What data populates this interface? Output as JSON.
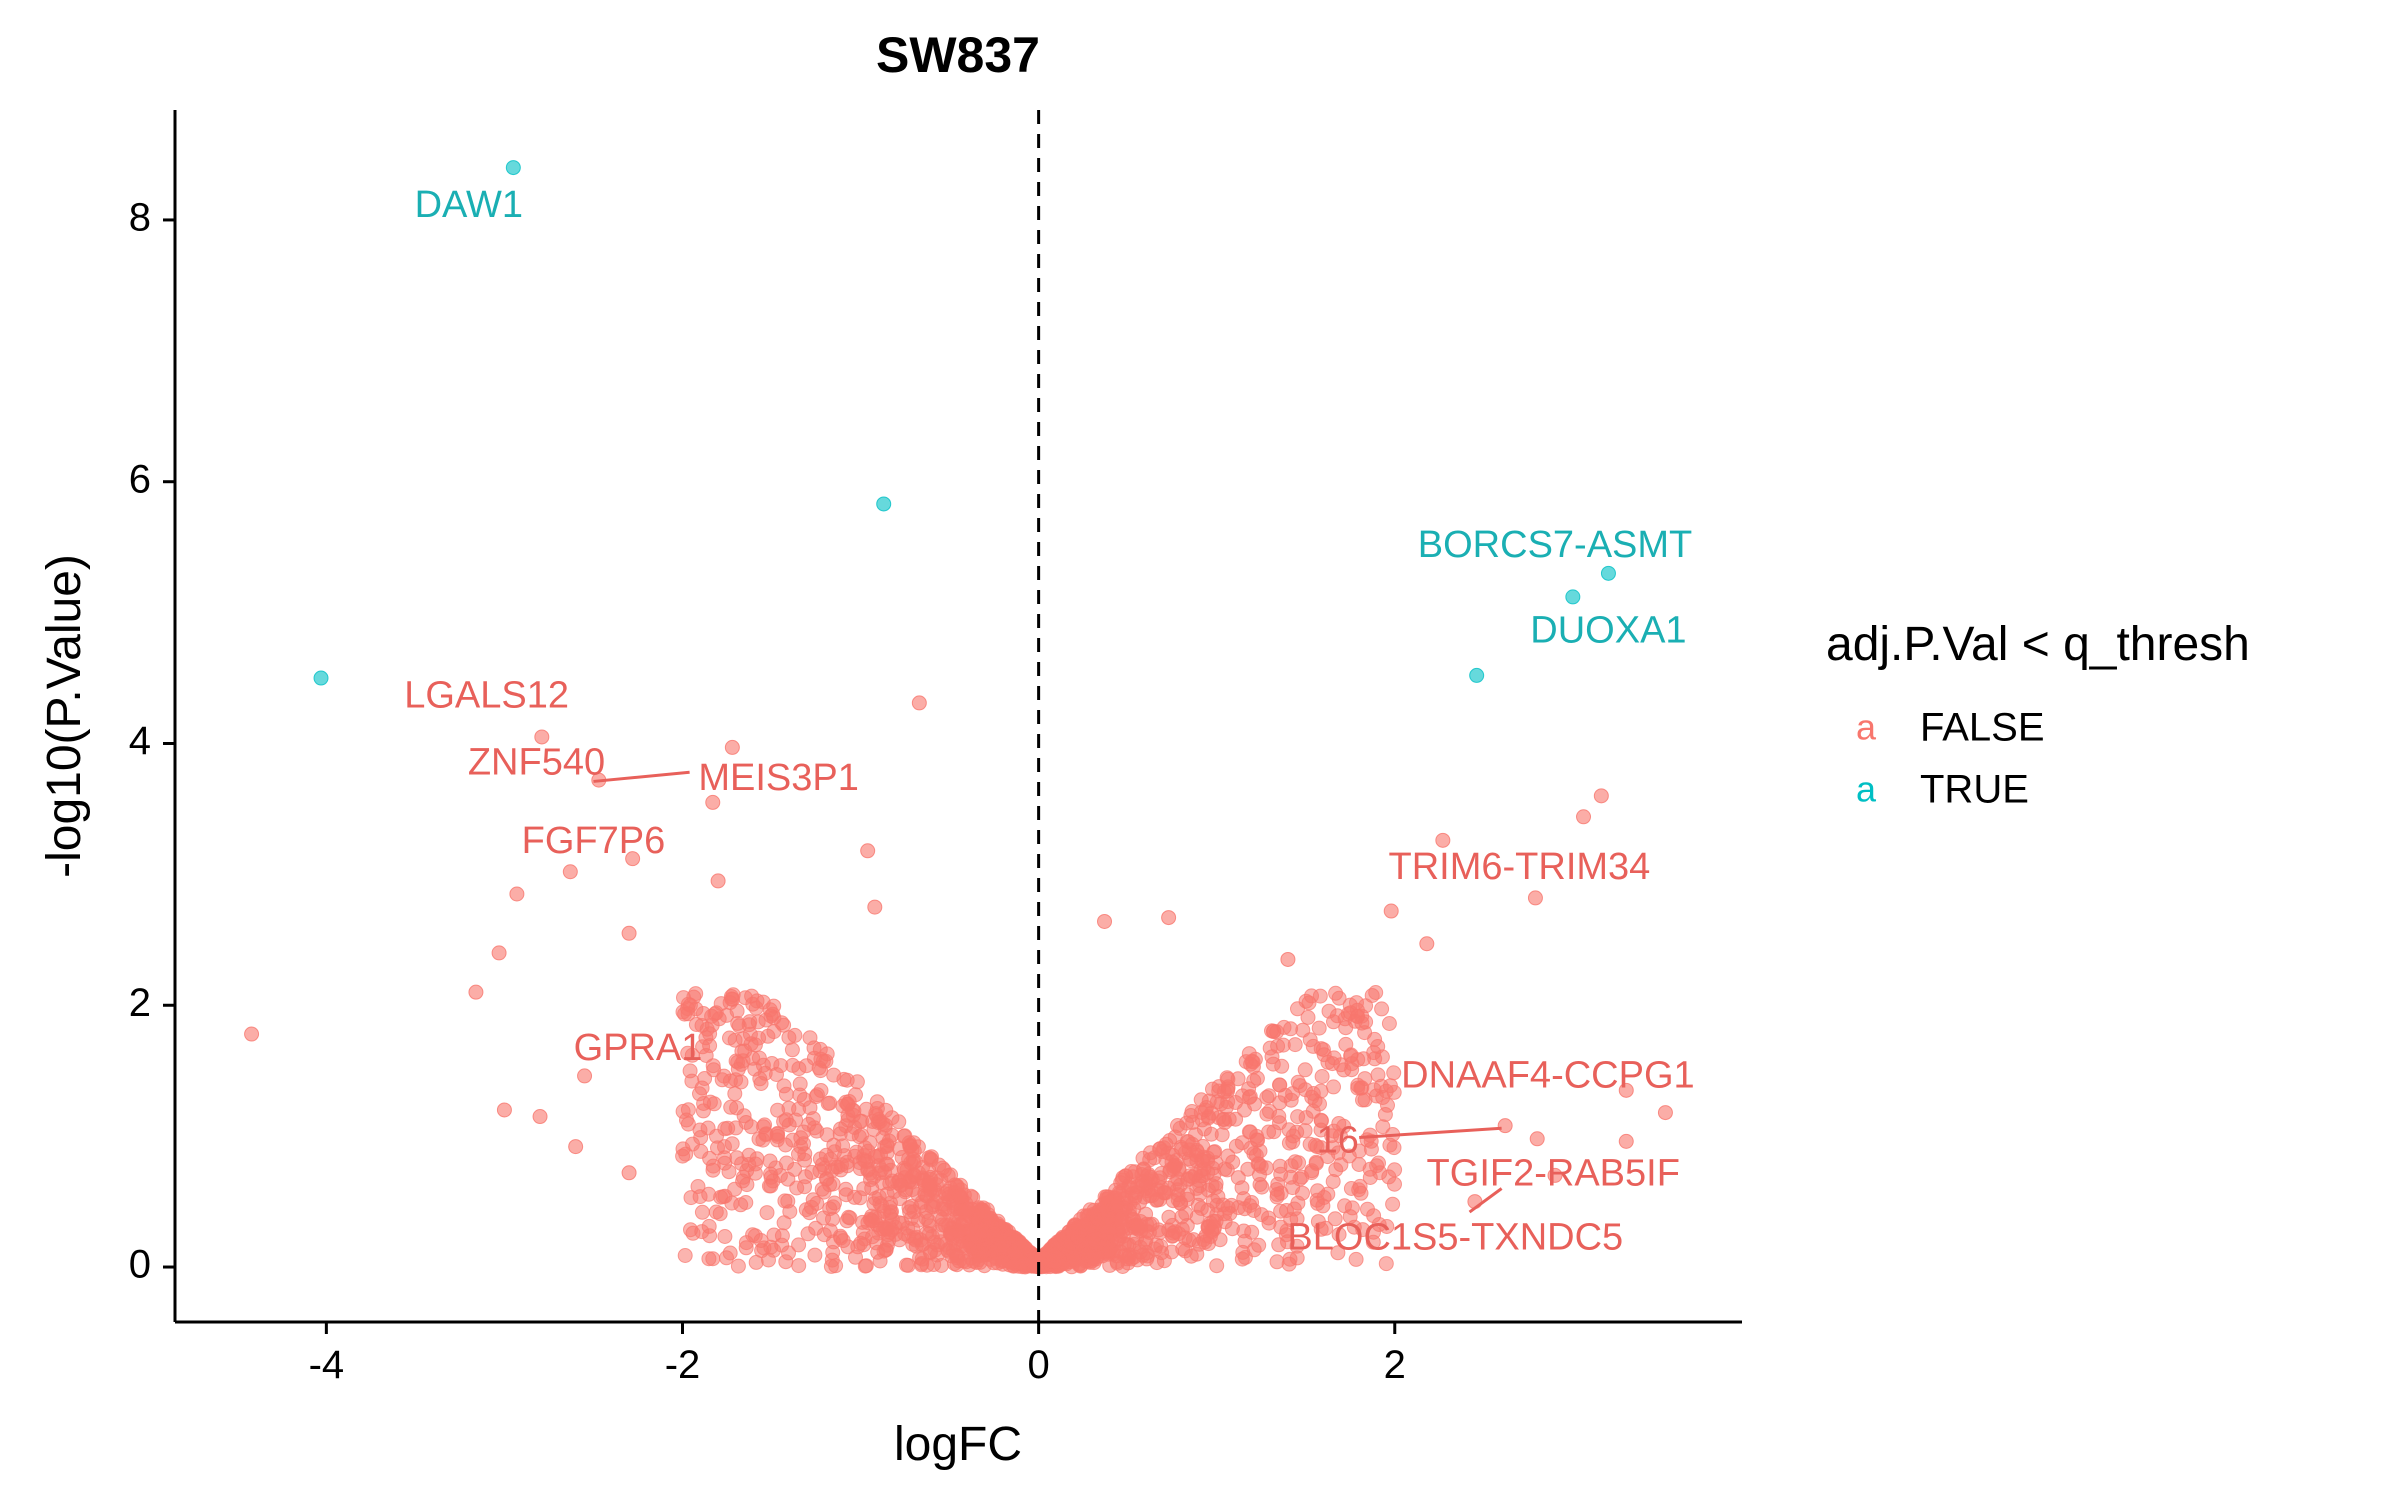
{
  "chart_data": {
    "type": "scatter",
    "title": "SW837",
    "xlabel": "logFC",
    "ylabel": "-log10(P.Value)",
    "xlim": [
      -4.85,
      3.95
    ],
    "ylim": [
      -0.42,
      8.84
    ],
    "x_ticks": [
      -4,
      -2,
      0,
      2
    ],
    "x_tick_labels": [
      "-4",
      "-2",
      "0",
      "2"
    ],
    "y_ticks": [
      0,
      2,
      4,
      6,
      8
    ],
    "y_tick_labels": [
      "0",
      "2",
      "4",
      "6",
      "8"
    ],
    "reference_line": {
      "x": 0,
      "style": "dashed"
    },
    "grid": false,
    "legend": {
      "title": "adj.P.Val < q_thresh",
      "placement": "right",
      "key_glyph": "a",
      "entries": [
        {
          "label": "FALSE",
          "color": "#F8766D"
        },
        {
          "label": "TRUE",
          "color": "#00BFC4"
        }
      ]
    },
    "colors": {
      "FALSE": "#F8766D",
      "TRUE": "#00BFC4",
      "label_false": "#E8605A",
      "label_true": "#1AAFB3"
    },
    "significant_points": [
      {
        "x": -2.95,
        "y": 8.4
      },
      {
        "x": -0.87,
        "y": 5.83
      },
      {
        "x": -4.03,
        "y": 4.5
      },
      {
        "x": 3.2,
        "y": 5.3
      },
      {
        "x": 3.0,
        "y": 5.12
      },
      {
        "x": 2.46,
        "y": 4.52
      }
    ],
    "notable_points": [
      {
        "x": -4.42,
        "y": 1.78
      },
      {
        "x": -3.16,
        "y": 2.1
      },
      {
        "x": -2.93,
        "y": 2.85
      },
      {
        "x": -2.63,
        "y": 3.02
      },
      {
        "x": -2.55,
        "y": 1.46
      },
      {
        "x": -2.28,
        "y": 3.12
      },
      {
        "x": -2.79,
        "y": 4.05
      },
      {
        "x": -2.47,
        "y": 3.72
      },
      {
        "x": -1.72,
        "y": 3.97
      },
      {
        "x": -1.83,
        "y": 3.55
      },
      {
        "x": -0.96,
        "y": 3.18
      },
      {
        "x": -0.92,
        "y": 2.75
      },
      {
        "x": -0.67,
        "y": 4.31
      },
      {
        "x": -3.03,
        "y": 2.4
      },
      {
        "x": -2.3,
        "y": 2.55
      },
      {
        "x": -3.0,
        "y": 1.2
      },
      {
        "x": -2.8,
        "y": 1.15
      },
      {
        "x": -2.6,
        "y": 0.92
      },
      {
        "x": -2.3,
        "y": 0.72
      },
      {
        "x": -1.8,
        "y": 2.95
      },
      {
        "x": 0.73,
        "y": 2.67
      },
      {
        "x": 0.37,
        "y": 2.64
      },
      {
        "x": 1.4,
        "y": 2.35
      },
      {
        "x": 2.27,
        "y": 3.26
      },
      {
        "x": 3.06,
        "y": 3.44
      },
      {
        "x": 3.16,
        "y": 3.6
      },
      {
        "x": 2.79,
        "y": 2.82
      },
      {
        "x": 1.98,
        "y": 2.72
      },
      {
        "x": 2.18,
        "y": 2.47
      },
      {
        "x": 2.62,
        "y": 1.08
      },
      {
        "x": 2.8,
        "y": 0.98
      },
      {
        "x": 3.3,
        "y": 1.35
      },
      {
        "x": 3.52,
        "y": 1.18
      },
      {
        "x": 3.3,
        "y": 0.96
      },
      {
        "x": 2.9,
        "y": 0.7
      },
      {
        "x": 2.45,
        "y": 0.5
      }
    ],
    "bulk_cloud": {
      "n_points": 2200,
      "x_range": [
        -2.0,
        2.0
      ],
      "y_max_at_edge": 2.1,
      "style": "V-shaped volcano cloud of non-significant genes"
    },
    "annotations": [
      {
        "text": "DAW1",
        "x": -3.2,
        "y": 8.1,
        "group": "TRUE"
      },
      {
        "text": "BORCS7-ASMT",
        "x": 2.9,
        "y": 5.5,
        "group": "TRUE"
      },
      {
        "text": "DUOXA1",
        "x": 3.2,
        "y": 4.85,
        "group": "TRUE"
      },
      {
        "text": "LGALS12",
        "x": -3.1,
        "y": 4.35,
        "group": "FALSE"
      },
      {
        "text": "ZNF540",
        "x": -2.82,
        "y": 3.84,
        "group": "FALSE"
      },
      {
        "text": "MEIS3P1",
        "x": -1.46,
        "y": 3.72,
        "group": "FALSE"
      },
      {
        "text": "FGF7P6",
        "x": -2.5,
        "y": 3.24,
        "group": "FALSE"
      },
      {
        "text": "TRIM6-TRIM34",
        "x": 2.7,
        "y": 3.04,
        "group": "FALSE"
      },
      {
        "text": "GPRA1",
        "x": -2.25,
        "y": 1.66,
        "group": "FALSE"
      },
      {
        "text": "DNAAF4-CCPG1",
        "x": 2.86,
        "y": 1.45,
        "group": "FALSE"
      },
      {
        "text": "16",
        "x": 1.68,
        "y": 0.95,
        "group": "FALSE"
      },
      {
        "text": "TGIF2-RAB5IF",
        "x": 2.89,
        "y": 0.7,
        "group": "FALSE"
      },
      {
        "text": "BLOC1S5-TXNDC5",
        "x": 2.34,
        "y": 0.21,
        "group": "FALSE"
      }
    ],
    "label_segments": [
      {
        "from": [
          -2.5,
          3.71
        ],
        "to": [
          -1.96,
          3.78
        ]
      },
      {
        "from": [
          1.8,
          0.99
        ],
        "to": [
          2.6,
          1.06
        ]
      },
      {
        "from": [
          2.42,
          0.42
        ],
        "to": [
          2.6,
          0.6
        ]
      }
    ]
  }
}
